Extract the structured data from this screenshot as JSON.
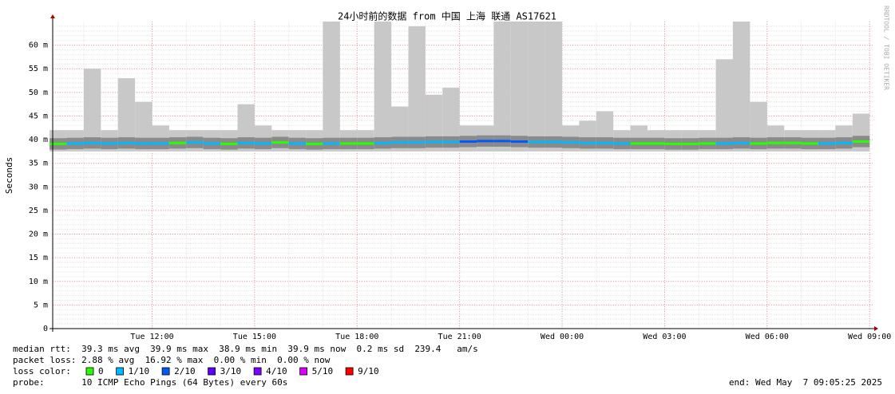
{
  "chart_data": {
    "type": "smokeping",
    "title": "24小时前的数据 from 中国 上海 联通 AS17621",
    "y_label": "Seconds",
    "watermark": "RRDTOOL / TOBI OETIKER",
    "xlim": [
      9.09,
      33.09
    ],
    "xticks": [
      {
        "value": 12,
        "label": "Tue 12:00"
      },
      {
        "value": 15,
        "label": "Tue 15:00"
      },
      {
        "value": 18,
        "label": "Tue 18:00"
      },
      {
        "value": 21,
        "label": "Tue 21:00"
      },
      {
        "value": 24,
        "label": "Wed 00:00"
      },
      {
        "value": 27,
        "label": "Wed 03:00"
      },
      {
        "value": 30,
        "label": "Wed 06:00"
      },
      {
        "value": 33,
        "label": "Wed 09:00"
      }
    ],
    "ylim": [
      0,
      65
    ],
    "yticks": [
      0,
      {
        "value": 5,
        "label": "5 m"
      },
      {
        "value": 10,
        "label": "10 m"
      },
      {
        "value": 15,
        "label": "15 m"
      },
      {
        "value": 20,
        "label": "20 m"
      },
      {
        "value": 25,
        "label": "25 m"
      },
      {
        "value": 30,
        "label": "30 m"
      },
      {
        "value": 35,
        "label": "35 m"
      },
      {
        "value": 40,
        "label": "40 m"
      },
      {
        "value": 45,
        "label": "45 m"
      },
      {
        "value": 50,
        "label": "50 m"
      },
      {
        "value": 55,
        "label": "55 m"
      },
      {
        "value": 60,
        "label": "60 m"
      }
    ],
    "x": [
      9.25,
      9.75,
      10.25,
      10.75,
      11.25,
      11.75,
      12.25,
      12.75,
      13.25,
      13.75,
      14.25,
      14.75,
      15.25,
      15.75,
      16.25,
      16.75,
      17.25,
      17.75,
      18.25,
      18.75,
      19.25,
      19.75,
      20.25,
      20.75,
      21.25,
      21.75,
      22.25,
      22.75,
      23.25,
      23.75,
      24.25,
      24.75,
      25.25,
      25.75,
      26.25,
      26.75,
      27.25,
      27.75,
      28.25,
      28.75,
      29.25,
      29.75,
      30.25,
      30.75,
      31.25,
      31.75,
      32.25,
      32.75
    ],
    "smoke_max": [
      42,
      42,
      55,
      42,
      53,
      48,
      43,
      42,
      42,
      42,
      42,
      47.5,
      43,
      42,
      42,
      42,
      65,
      42,
      42,
      65,
      47,
      64,
      49.5,
      51,
      43,
      43,
      65,
      65,
      65,
      65,
      43,
      44,
      46,
      42,
      43,
      42,
      42,
      42,
      42,
      57,
      65,
      48,
      43,
      42,
      42,
      42,
      43,
      45.5
    ],
    "smoke_min": [
      37.5,
      37.5,
      37.5,
      37.5,
      37.5,
      37.5,
      37.5,
      37.5,
      37.5,
      37.5,
      37.5,
      37.5,
      37.5,
      37.5,
      37.5,
      37.5,
      37.5,
      37.5,
      37.5,
      37.5,
      37.5,
      37.5,
      37.5,
      37.5,
      37.5,
      37.5,
      37.5,
      37.5,
      37.5,
      37.5,
      37.5,
      37.5,
      37.5,
      37.5,
      37.5,
      37.5,
      37.5,
      37.5,
      37.5,
      37.5,
      37.5,
      37.5,
      37.5,
      37.5,
      37.5,
      37.5,
      37.5,
      37.5
    ],
    "median": [
      39.1,
      39.2,
      39.3,
      39.2,
      39.3,
      39.2,
      39.2,
      39.3,
      39.4,
      39.2,
      39.1,
      39.3,
      39.2,
      39.4,
      39.2,
      39.1,
      39.2,
      39.2,
      39.2,
      39.3,
      39.4,
      39.4,
      39.5,
      39.5,
      39.6,
      39.7,
      39.7,
      39.6,
      39.5,
      39.5,
      39.4,
      39.3,
      39.3,
      39.2,
      39.2,
      39.2,
      39.1,
      39.1,
      39.2,
      39.2,
      39.3,
      39.2,
      39.3,
      39.3,
      39.2,
      39.2,
      39.3,
      39.6
    ],
    "loss": [
      0,
      1,
      1,
      1,
      1,
      1,
      1,
      0,
      1,
      1,
      0,
      1,
      1,
      0,
      1,
      0,
      1,
      0,
      0,
      1,
      1,
      1,
      1,
      1,
      2,
      2,
      2,
      2,
      1,
      1,
      1,
      1,
      1,
      1,
      0,
      0,
      0,
      0,
      0,
      1,
      1,
      0,
      0,
      0,
      0,
      1,
      1,
      0
    ],
    "stats": [
      "median rtt:  39.3 ms avg  39.9 ms max  38.9 ms min  39.9 ms now  0.2 ms sd  239.4   am/s",
      "packet loss: 2.88 % avg  16.92 % max  0.00 % min  0.00 % now"
    ],
    "loss_label": "loss color:",
    "loss_legend": [
      {
        "name": "0",
        "color": "#26ff00"
      },
      {
        "name": "1/10",
        "color": "#00b8ff"
      },
      {
        "name": "2/10",
        "color": "#0059ff"
      },
      {
        "name": "3/10",
        "color": "#5e00ff"
      },
      {
        "name": "4/10",
        "color": "#7e00ff"
      },
      {
        "name": "5/10",
        "color": "#dd00ff"
      },
      {
        "name": "9/10",
        "color": "#ff0000"
      }
    ],
    "probe": "probe:       10 ICMP Echo Pings (64 Bytes) every 60s",
    "end": "end: Wed May  7 09:05:25 2025"
  }
}
